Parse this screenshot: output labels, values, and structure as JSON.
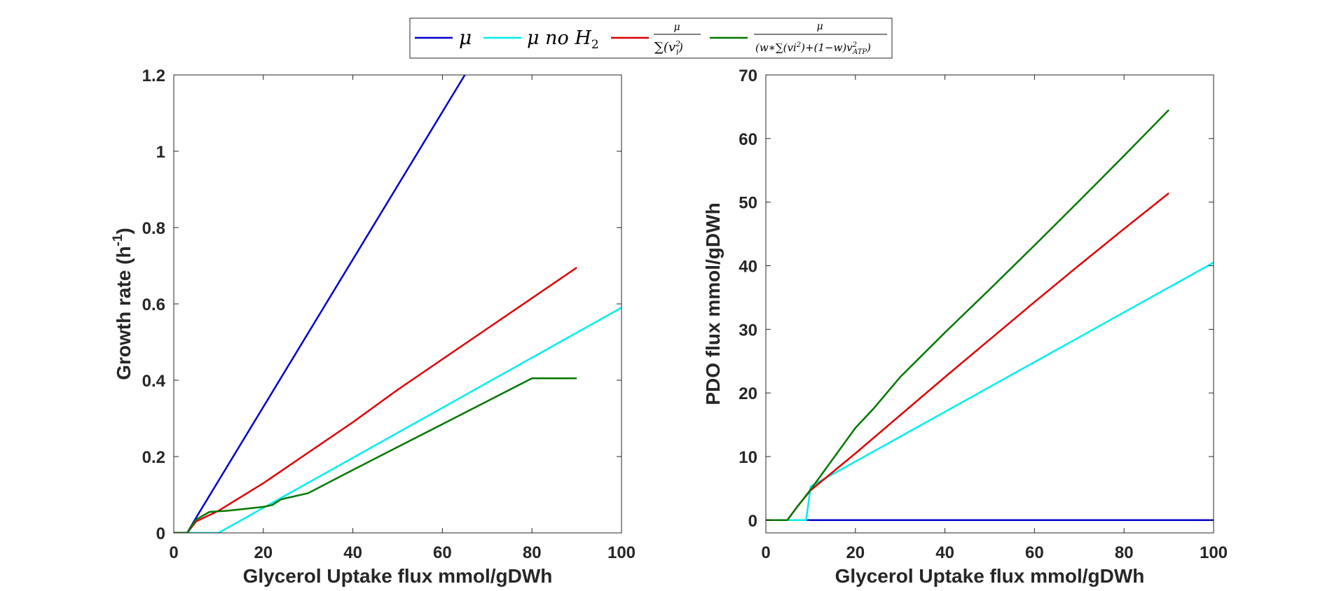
{
  "legend": {
    "placement": "top-center",
    "entries": [
      {
        "series": "mu",
        "label": "μ"
      },
      {
        "series": "mu_no_h2",
        "label_main": "μ no H",
        "label_sub": "2"
      },
      {
        "series": "sum_vi2",
        "numerator": "μ",
        "denominator": "∑(v",
        "den_sup": "2",
        "den_sub": "i",
        "den_close": ")"
      },
      {
        "series": "weighted",
        "numerator": "μ",
        "den_a": "(w∗∑(vi",
        "den_a_sup": "2",
        "den_b": ")+(1−w)v",
        "den_b_sup": "2",
        "den_b_sub": "ATP",
        "den_close": ")"
      }
    ]
  },
  "colors": {
    "mu": "#0000CC",
    "mu_no_h2": "#00EEEE",
    "sum_vi2": "#DD0000",
    "weighted": "#007700",
    "axes": "#262626"
  },
  "chart_data": [
    {
      "type": "line",
      "xlabel": "Glycerol Uptake flux mmol/gDWh",
      "ylabel": "Growth rate (h",
      "ylabel_sup": "-1",
      "ylabel_close": ")",
      "xlim": [
        0,
        100
      ],
      "ylim": [
        0,
        1.2
      ],
      "xticks": [
        "0",
        "20",
        "40",
        "60",
        "80",
        "100"
      ],
      "yticks": [
        "0",
        "0.2",
        "0.4",
        "0.6",
        "0.8",
        "1",
        "1.2"
      ],
      "grid": false,
      "series": [
        {
          "key": "mu",
          "x": [
            0,
            3,
            5,
            65
          ],
          "y": [
            0,
            0,
            0.04,
            1.2
          ]
        },
        {
          "key": "mu_no_h2",
          "x": [
            0,
            10,
            100
          ],
          "y": [
            0,
            0,
            0.59
          ]
        },
        {
          "key": "sum_vi2",
          "x": [
            0,
            3,
            5,
            10,
            20,
            30,
            40,
            50,
            60,
            70,
            80,
            90
          ],
          "y": [
            0,
            0,
            0.03,
            0.058,
            0.13,
            0.21,
            0.29,
            0.375,
            0.455,
            0.535,
            0.615,
            0.695
          ]
        },
        {
          "key": "weighted",
          "x": [
            0,
            3,
            5,
            8,
            12,
            20,
            22,
            24,
            30,
            40,
            50,
            60,
            70,
            80,
            90
          ],
          "y": [
            0,
            0,
            0.035,
            0.055,
            0.058,
            0.068,
            0.073,
            0.088,
            0.104,
            0.165,
            0.225,
            0.285,
            0.345,
            0.405,
            0.405
          ]
        }
      ]
    },
    {
      "type": "line",
      "xlabel": "Glycerol Uptake flux mmol/gDWh",
      "ylabel": "PDO flux mmol/gDWh",
      "xlim": [
        0,
        100
      ],
      "ylim": [
        -2,
        70
      ],
      "xticks": [
        "0",
        "20",
        "40",
        "60",
        "80",
        "100"
      ],
      "yticks": [
        "0",
        "10",
        "20",
        "30",
        "40",
        "50",
        "60",
        "70"
      ],
      "grid": false,
      "series": [
        {
          "key": "mu",
          "x": [
            0,
            100
          ],
          "y": [
            0,
            0
          ]
        },
        {
          "key": "mu_no_h2",
          "x": [
            0,
            9,
            10,
            100
          ],
          "y": [
            0,
            0,
            5.3,
            40.5
          ]
        },
        {
          "key": "sum_vi2",
          "x": [
            0,
            4.8,
            7,
            10,
            20,
            30,
            40,
            50,
            60,
            70,
            80,
            90
          ],
          "y": [
            0,
            0,
            2.1,
            4.7,
            10.5,
            16.5,
            22.5,
            28.4,
            34.3,
            40.1,
            45.8,
            51.4
          ]
        },
        {
          "key": "weighted",
          "x": [
            0,
            4.8,
            7,
            10,
            20,
            24,
            30,
            40,
            50,
            60,
            70,
            80,
            90
          ],
          "y": [
            0,
            0,
            2.1,
            4.8,
            14.5,
            17.5,
            22.5,
            29.5,
            36.3,
            43.2,
            50.2,
            57.3,
            64.5
          ]
        }
      ]
    }
  ]
}
